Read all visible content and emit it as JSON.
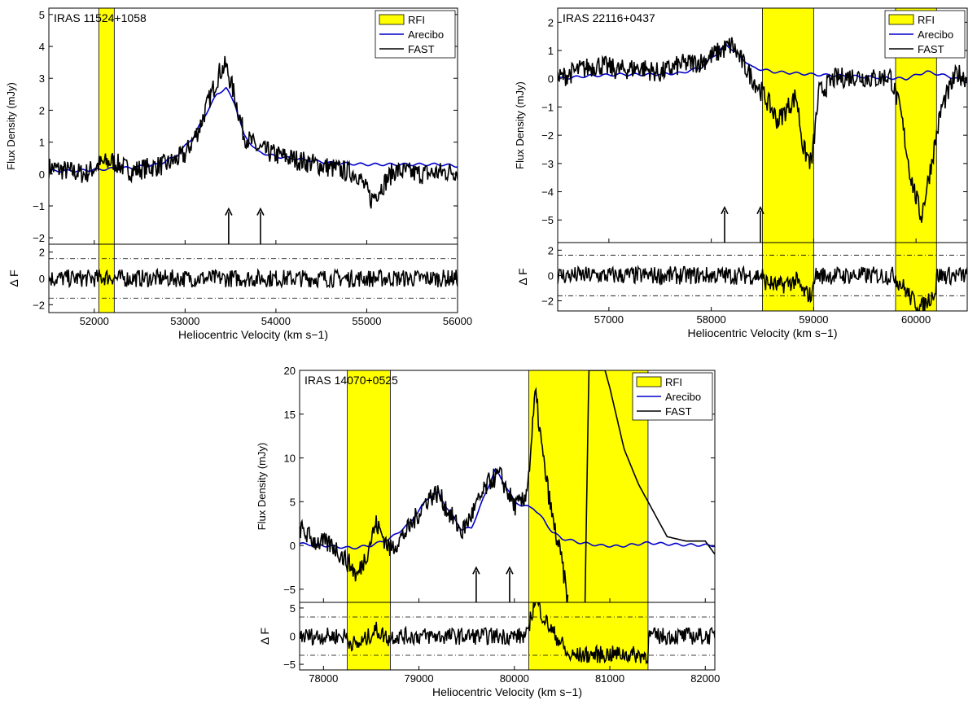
{
  "colors": {
    "rfi": "#ffff00",
    "arecibo": "#0000cc",
    "fast": "#000000"
  },
  "chart_data": [
    {
      "type": "line",
      "id": "p1",
      "source": "IRAS 11524+1058",
      "xlabel": "Heliocentric Velocity (km s−1)",
      "ylabel": "Flux Density (mJy)",
      "residual_ylabel": "Δ F",
      "xlim": [
        51500,
        56000
      ],
      "ylim": [
        -2.2,
        5.2
      ],
      "residual_ylim": [
        -2.6,
        2.6
      ],
      "xticks": [
        "52000",
        "53000",
        "54000",
        "55000",
        "56000"
      ],
      "yticks": [
        "−2",
        "−1",
        "0",
        "1",
        "2",
        "3",
        "4",
        "5"
      ],
      "residual_yticks": [
        "−2",
        "0",
        "2"
      ],
      "residual_sigma": 1.5,
      "rfi_bands": [
        [
          52050,
          52220
        ]
      ],
      "arrows": [
        53480,
        53830
      ],
      "legend": [
        "RFI",
        "Arecibo",
        "FAST"
      ],
      "legend_position": "top-right",
      "series": [
        {
          "name": "Arecibo",
          "x": [
            51500,
            51800,
            52100,
            52400,
            52700,
            52900,
            53100,
            53250,
            53350,
            53450,
            53550,
            53650,
            53800,
            54000,
            54300,
            54600,
            55000,
            55400,
            55800,
            56000
          ],
          "y": [
            0.1,
            0.1,
            0.15,
            0.2,
            0.3,
            0.55,
            1.2,
            2.0,
            2.5,
            2.7,
            2.2,
            1.2,
            0.7,
            0.55,
            0.45,
            0.35,
            0.3,
            0.3,
            0.3,
            0.25
          ]
        },
        {
          "name": "FAST",
          "x": [
            51500,
            51700,
            51900,
            52050,
            52200,
            52400,
            52600,
            52800,
            53000,
            53150,
            53300,
            53380,
            53450,
            53550,
            53650,
            53800,
            54000,
            54300,
            54600,
            54900,
            55050,
            55300,
            55600,
            56000
          ],
          "y": [
            0.2,
            0.1,
            0.0,
            0.3,
            0.4,
            0.1,
            0.2,
            0.3,
            0.6,
            1.4,
            2.6,
            3.2,
            3.4,
            2.4,
            1.2,
            0.8,
            0.6,
            0.4,
            0.2,
            0.0,
            -0.8,
            0.1,
            0.0,
            0.1
          ]
        }
      ]
    },
    {
      "type": "line",
      "id": "p2",
      "source": "IRAS 22116+0437",
      "xlabel": "Heliocentric Velocity (km s−1)",
      "ylabel": "Flux Density (mJy)",
      "residual_ylabel": "Δ F",
      "xlim": [
        56500,
        60500
      ],
      "ylim": [
        -5.8,
        2.5
      ],
      "residual_ylim": [
        -2.8,
        2.6
      ],
      "xticks": [
        "57000",
        "58000",
        "59000",
        "60000"
      ],
      "yticks": [
        "−5",
        "−4",
        "−3",
        "−2",
        "−1",
        "0",
        "1",
        "2"
      ],
      "residual_yticks": [
        "−2",
        "0",
        "2"
      ],
      "residual_sigma": 1.6,
      "rfi_bands": [
        [
          58500,
          59000
        ],
        [
          59800,
          60200
        ]
      ],
      "arrows": [
        58130,
        58480
      ],
      "legend": [
        "RFI",
        "Arecibo",
        "FAST"
      ],
      "legend_position": "top-right",
      "series": [
        {
          "name": "Arecibo",
          "x": [
            56500,
            56800,
            57100,
            57400,
            57700,
            57900,
            58050,
            58150,
            58250,
            58400,
            58600,
            58800,
            59000,
            59300,
            59600,
            59900,
            60100,
            60300,
            60500
          ],
          "y": [
            0.0,
            0.1,
            0.15,
            0.15,
            0.2,
            0.4,
            0.9,
            1.2,
            0.9,
            0.4,
            0.25,
            0.2,
            0.15,
            0.1,
            0.05,
            0.0,
            0.25,
            0.1,
            -0.1
          ]
        },
        {
          "name": "FAST",
          "x": [
            56500,
            56700,
            56900,
            57100,
            57300,
            57500,
            57700,
            57900,
            58100,
            58200,
            58350,
            58500,
            58580,
            58650,
            58750,
            58830,
            58900,
            58980,
            59050,
            59200,
            59400,
            59600,
            59750,
            59850,
            59950,
            60050,
            60150,
            60250,
            60400,
            60500
          ],
          "y": [
            0.0,
            0.3,
            0.5,
            0.3,
            0.4,
            0.2,
            0.5,
            0.6,
            1.0,
            1.2,
            0.3,
            -0.5,
            -1.0,
            -1.5,
            -1.0,
            -0.6,
            -2.5,
            -3.0,
            -0.5,
            0.0,
            0.1,
            0.0,
            0.1,
            -1.2,
            -3.5,
            -4.9,
            -3.0,
            -1.0,
            0.2,
            0.0
          ]
        }
      ]
    },
    {
      "type": "line",
      "id": "p3",
      "source": "IRAS 14070+0525",
      "xlabel": "Heliocentric Velocity (km s−1)",
      "ylabel": "Flux Density (mJy)",
      "residual_ylabel": "Δ F",
      "xlim": [
        77750,
        82100
      ],
      "ylim": [
        -6.5,
        20
      ],
      "residual_ylim": [
        -6,
        6
      ],
      "xticks": [
        "78000",
        "79000",
        "80000",
        "81000",
        "82000"
      ],
      "yticks": [
        "−5",
        "0",
        "5",
        "10",
        "15",
        "20"
      ],
      "residual_yticks": [
        "−5",
        "0",
        "5"
      ],
      "residual_sigma": 3.4,
      "rfi_bands": [
        [
          78250,
          78700
        ],
        [
          80150,
          81400
        ]
      ],
      "arrows": [
        79600,
        79950
      ],
      "legend": [
        "RFI",
        "Arecibo",
        "FAST"
      ],
      "legend_position": "top-right",
      "series": [
        {
          "name": "Arecibo",
          "x": [
            77750,
            78000,
            78300,
            78500,
            78700,
            78900,
            79100,
            79200,
            79300,
            79450,
            79550,
            79700,
            79800,
            79900,
            80000,
            80100,
            80200,
            80300,
            80400,
            80500,
            80700,
            80900,
            81100,
            81400,
            81700,
            82100
          ],
          "y": [
            0.2,
            0.0,
            -0.3,
            0.0,
            0.8,
            2.5,
            5.5,
            6.0,
            4.2,
            1.8,
            2.0,
            6.0,
            8.7,
            7.0,
            5.0,
            4.5,
            4.3,
            3.0,
            1.5,
            0.8,
            0.3,
            0.0,
            -0.1,
            0.3,
            0.1,
            0.0
          ]
        },
        {
          "name": "FAST",
          "x": [
            77750,
            77900,
            78100,
            78300,
            78350,
            78450,
            78550,
            78700,
            78900,
            79100,
            79200,
            79300,
            79450,
            79600,
            79750,
            79850,
            80000,
            80100,
            80150,
            80220,
            80300,
            80400,
            80500,
            80560
          ],
          "y": [
            2.0,
            0.5,
            0.0,
            -2.5,
            -3.6,
            -1.0,
            2.5,
            -0.5,
            2.0,
            5.5,
            6.0,
            4.0,
            1.5,
            4.5,
            7.5,
            8.0,
            4.5,
            5.0,
            8.0,
            17.5,
            10.0,
            3.0,
            -2.0,
            -6.5
          ]
        },
        {
          "name": "FAST-2",
          "x": [
            80740,
            80780,
            80850,
            80950,
            81000,
            81150,
            81300,
            81450,
            81600,
            81800,
            82000,
            82100
          ],
          "y": [
            -6.5,
            20,
            20,
            20,
            18,
            11,
            7,
            4,
            1,
            0.5,
            0.5,
            -1.0
          ]
        }
      ]
    }
  ]
}
